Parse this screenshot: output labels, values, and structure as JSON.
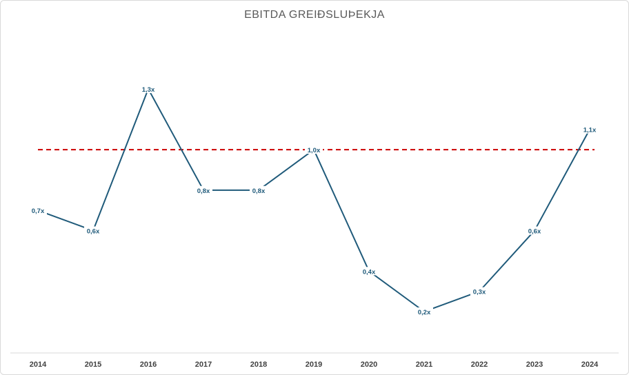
{
  "chart_data": {
    "type": "line",
    "title": "EBITDA GREIÐSLUÞEKJA",
    "xlabel": "",
    "ylabel": "",
    "categories": [
      "2014",
      "2015",
      "2016",
      "2017",
      "2018",
      "2019",
      "2020",
      "2021",
      "2022",
      "2023",
      "2024"
    ],
    "series": [
      {
        "values": [
          0.7,
          0.6,
          1.3,
          0.8,
          0.8,
          1.0,
          0.4,
          0.2,
          0.3,
          0.6,
          1.1
        ],
        "labels": [
          "0,7x",
          "0,6x",
          "1,3x",
          "0,8x",
          "0,8x",
          "1,0x",
          "0,4x",
          "0,2x",
          "0,3x",
          "0,6x",
          "1,1x"
        ],
        "color": "#1f5a7a"
      }
    ],
    "reference_line": {
      "value": 1.0,
      "color": "#cc0000",
      "style": "dashed"
    },
    "ylim": [
      0,
      1.4
    ],
    "grid": false,
    "legend": "none",
    "y_axis_visible": false
  }
}
